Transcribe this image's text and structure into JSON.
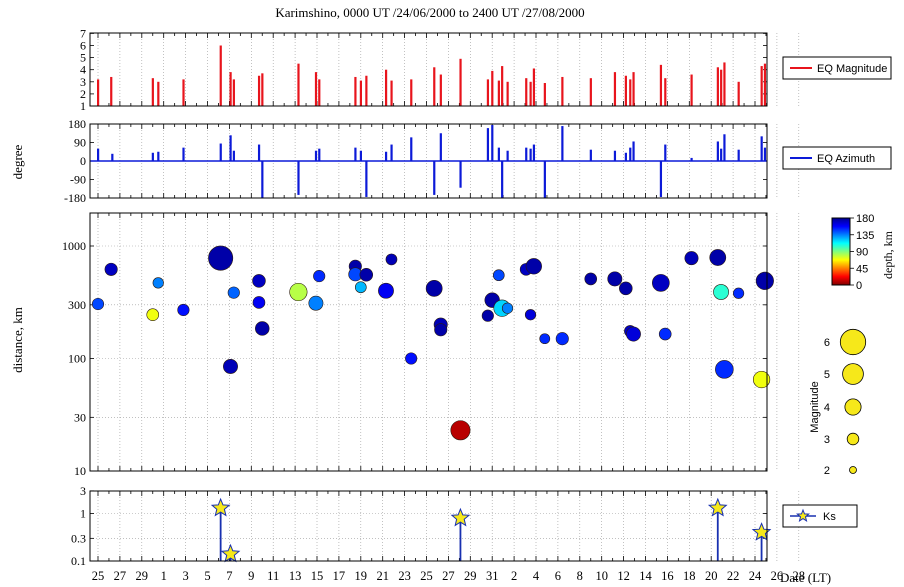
{
  "title": "Karimshino,  0000 UT /24/06/2000  to  2400 UT /27/08/2000",
  "xlabel": "Date (LT)",
  "x_ticks": [
    "25",
    "27",
    "29",
    "1",
    "3",
    "5",
    "7",
    "9",
    "11",
    "13",
    "15",
    "17",
    "19",
    "21",
    "23",
    "25",
    "27",
    "29",
    "31",
    "2",
    "4",
    "6",
    "8",
    "10",
    "12",
    "14",
    "16",
    "18",
    "20",
    "22",
    "24",
    "26",
    "28"
  ],
  "colors": {
    "magnitude_bar": "#e8141c",
    "azimuth_bar": "#0c1ad8",
    "ks_stem": "#1830b0",
    "ks_star": "#f6e81a",
    "grid": "#9a9a9a"
  },
  "chart_data": [
    {
      "type": "bar",
      "panel": "magnitude",
      "ylabel": "",
      "ylim": [
        1,
        7
      ],
      "y_ticks": [
        1,
        2,
        3,
        4,
        5,
        6,
        7
      ],
      "legend": "EQ Magnitude",
      "legend_position": "right",
      "x_unit": "days since first date tick",
      "values": [
        {
          "x": 0.0,
          "y": 3.2
        },
        {
          "x": 1.2,
          "y": 3.4
        },
        {
          "x": 5.0,
          "y": 3.3
        },
        {
          "x": 5.5,
          "y": 3.0
        },
        {
          "x": 7.8,
          "y": 3.2
        },
        {
          "x": 11.2,
          "y": 6.0
        },
        {
          "x": 12.1,
          "y": 3.8
        },
        {
          "x": 12.4,
          "y": 3.2
        },
        {
          "x": 14.7,
          "y": 3.5
        },
        {
          "x": 15.0,
          "y": 3.7
        },
        {
          "x": 18.3,
          "y": 4.5
        },
        {
          "x": 19.9,
          "y": 3.8
        },
        {
          "x": 20.2,
          "y": 3.2
        },
        {
          "x": 23.5,
          "y": 3.4
        },
        {
          "x": 24.0,
          "y": 3.1
        },
        {
          "x": 24.5,
          "y": 3.5
        },
        {
          "x": 26.3,
          "y": 4.0
        },
        {
          "x": 26.8,
          "y": 3.1
        },
        {
          "x": 28.6,
          "y": 3.2
        },
        {
          "x": 30.7,
          "y": 4.2
        },
        {
          "x": 31.3,
          "y": 3.6
        },
        {
          "x": 33.1,
          "y": 4.9
        },
        {
          "x": 35.6,
          "y": 3.2
        },
        {
          "x": 36.0,
          "y": 3.9
        },
        {
          "x": 36.6,
          "y": 3.1
        },
        {
          "x": 36.9,
          "y": 4.3
        },
        {
          "x": 37.4,
          "y": 3.0
        },
        {
          "x": 39.1,
          "y": 3.3
        },
        {
          "x": 39.5,
          "y": 3.0
        },
        {
          "x": 39.8,
          "y": 4.1
        },
        {
          "x": 40.8,
          "y": 2.9
        },
        {
          "x": 42.4,
          "y": 3.4
        },
        {
          "x": 45.0,
          "y": 3.3
        },
        {
          "x": 47.2,
          "y": 3.8
        },
        {
          "x": 48.2,
          "y": 3.5
        },
        {
          "x": 48.6,
          "y": 3.2
        },
        {
          "x": 48.9,
          "y": 3.8
        },
        {
          "x": 51.4,
          "y": 4.4
        },
        {
          "x": 51.8,
          "y": 3.3
        },
        {
          "x": 54.2,
          "y": 3.6
        },
        {
          "x": 56.6,
          "y": 4.2
        },
        {
          "x": 56.9,
          "y": 4.0
        },
        {
          "x": 57.2,
          "y": 4.6
        },
        {
          "x": 58.5,
          "y": 3.0
        },
        {
          "x": 60.6,
          "y": 4.3
        },
        {
          "x": 60.9,
          "y": 4.5
        }
      ]
    },
    {
      "type": "bar",
      "panel": "azimuth",
      "ylabel": "degree",
      "ylim": [
        -180,
        180
      ],
      "y_ticks": [
        180,
        90,
        0,
        -90,
        -180
      ],
      "legend": "EQ   Azimuth",
      "legend_position": "right",
      "values": [
        {
          "x": 0.0,
          "y": 60
        },
        {
          "x": 1.3,
          "y": 35
        },
        {
          "x": 5.0,
          "y": 40
        },
        {
          "x": 5.5,
          "y": 45
        },
        {
          "x": 7.8,
          "y": 65
        },
        {
          "x": 11.2,
          "y": 85
        },
        {
          "x": 12.1,
          "y": 125
        },
        {
          "x": 12.4,
          "y": 50
        },
        {
          "x": 14.7,
          "y": 80
        },
        {
          "x": 15.0,
          "y": -180
        },
        {
          "x": 18.3,
          "y": -165
        },
        {
          "x": 19.9,
          "y": 50
        },
        {
          "x": 20.2,
          "y": 60
        },
        {
          "x": 23.5,
          "y": 65
        },
        {
          "x": 24.0,
          "y": 50
        },
        {
          "x": 24.5,
          "y": -175
        },
        {
          "x": 26.3,
          "y": 45
        },
        {
          "x": 26.8,
          "y": 80
        },
        {
          "x": 28.6,
          "y": 115
        },
        {
          "x": 30.7,
          "y": -165
        },
        {
          "x": 31.3,
          "y": 135
        },
        {
          "x": 33.1,
          "y": -130
        },
        {
          "x": 35.6,
          "y": 160
        },
        {
          "x": 36.0,
          "y": 175
        },
        {
          "x": 36.6,
          "y": 65
        },
        {
          "x": 36.9,
          "y": -180
        },
        {
          "x": 37.4,
          "y": 50
        },
        {
          "x": 39.1,
          "y": 65
        },
        {
          "x": 39.5,
          "y": 60
        },
        {
          "x": 39.8,
          "y": 80
        },
        {
          "x": 40.8,
          "y": -180
        },
        {
          "x": 42.4,
          "y": 170
        },
        {
          "x": 45.0,
          "y": 55
        },
        {
          "x": 47.2,
          "y": 50
        },
        {
          "x": 48.2,
          "y": 40
        },
        {
          "x": 48.6,
          "y": 65
        },
        {
          "x": 48.9,
          "y": 95
        },
        {
          "x": 51.4,
          "y": -175
        },
        {
          "x": 51.8,
          "y": 80
        },
        {
          "x": 54.2,
          "y": 15
        },
        {
          "x": 56.6,
          "y": 95
        },
        {
          "x": 56.9,
          "y": 60
        },
        {
          "x": 57.2,
          "y": 130
        },
        {
          "x": 58.5,
          "y": 55
        },
        {
          "x": 60.6,
          "y": 120
        },
        {
          "x": 60.9,
          "y": 65
        }
      ]
    },
    {
      "type": "scatter",
      "panel": "distance",
      "ylabel": "distance, km",
      "y_scale": "log",
      "ylim": [
        10,
        2000
      ],
      "y_ticks": [
        10,
        30,
        100,
        300,
        1000
      ],
      "colorbar": {
        "label": "depth, km",
        "range": [
          0,
          180
        ],
        "ticks": [
          0,
          45,
          90,
          135,
          180
        ]
      },
      "size_legend": {
        "label": "Magnitude",
        "values": [
          2,
          3,
          4,
          5,
          6
        ]
      },
      "points": [
        {
          "x": 0.0,
          "y": 305,
          "depth": 35,
          "mag": 3.2
        },
        {
          "x": 1.2,
          "y": 620,
          "depth": 10,
          "mag": 3.4
        },
        {
          "x": 5.0,
          "y": 245,
          "depth": 110,
          "mag": 3.3
        },
        {
          "x": 5.5,
          "y": 470,
          "depth": 45,
          "mag": 3.0
        },
        {
          "x": 7.8,
          "y": 270,
          "depth": 25,
          "mag": 3.2
        },
        {
          "x": 11.2,
          "y": 780,
          "depth": 5,
          "mag": 6.0
        },
        {
          "x": 12.1,
          "y": 85,
          "depth": 8,
          "mag": 3.8
        },
        {
          "x": 12.4,
          "y": 385,
          "depth": 40,
          "mag": 3.2
        },
        {
          "x": 14.7,
          "y": 490,
          "depth": 10,
          "mag": 3.5
        },
        {
          "x": 14.7,
          "y": 315,
          "depth": 20,
          "mag": 3.3
        },
        {
          "x": 15.0,
          "y": 185,
          "depth": 5,
          "mag": 3.7
        },
        {
          "x": 18.3,
          "y": 390,
          "depth": 100,
          "mag": 4.5
        },
        {
          "x": 19.9,
          "y": 310,
          "depth": 45,
          "mag": 3.8
        },
        {
          "x": 20.2,
          "y": 540,
          "depth": 30,
          "mag": 3.2
        },
        {
          "x": 23.5,
          "y": 660,
          "depth": 5,
          "mag": 3.4
        },
        {
          "x": 23.5,
          "y": 560,
          "depth": 35,
          "mag": 3.6
        },
        {
          "x": 24.0,
          "y": 430,
          "depth": 55,
          "mag": 3.1
        },
        {
          "x": 24.5,
          "y": 555,
          "depth": 5,
          "mag": 3.5
        },
        {
          "x": 26.3,
          "y": 400,
          "depth": 20,
          "mag": 4.0
        },
        {
          "x": 26.8,
          "y": 760,
          "depth": 8,
          "mag": 3.1
        },
        {
          "x": 28.6,
          "y": 100,
          "depth": 25,
          "mag": 3.2
        },
        {
          "x": 30.7,
          "y": 420,
          "depth": 5,
          "mag": 4.2
        },
        {
          "x": 31.3,
          "y": 200,
          "depth": 8,
          "mag": 3.6
        },
        {
          "x": 31.3,
          "y": 180,
          "depth": 5,
          "mag": 3.4
        },
        {
          "x": 33.1,
          "y": 23,
          "depth": 170,
          "mag": 4.9
        },
        {
          "x": 35.6,
          "y": 240,
          "depth": 5,
          "mag": 3.2
        },
        {
          "x": 36.0,
          "y": 330,
          "depth": 5,
          "mag": 3.9
        },
        {
          "x": 36.6,
          "y": 550,
          "depth": 35,
          "mag": 3.1
        },
        {
          "x": 36.9,
          "y": 280,
          "depth": 60,
          "mag": 4.3
        },
        {
          "x": 37.4,
          "y": 280,
          "depth": 45,
          "mag": 3.0
        },
        {
          "x": 39.1,
          "y": 620,
          "depth": 10,
          "mag": 3.3
        },
        {
          "x": 39.5,
          "y": 245,
          "depth": 15,
          "mag": 3.0
        },
        {
          "x": 39.8,
          "y": 660,
          "depth": 5,
          "mag": 4.1
        },
        {
          "x": 40.8,
          "y": 150,
          "depth": 30,
          "mag": 2.9
        },
        {
          "x": 42.4,
          "y": 150,
          "depth": 30,
          "mag": 3.4
        },
        {
          "x": 45.0,
          "y": 510,
          "depth": 5,
          "mag": 3.3
        },
        {
          "x": 47.2,
          "y": 510,
          "depth": 5,
          "mag": 3.8
        },
        {
          "x": 48.2,
          "y": 420,
          "depth": 5,
          "mag": 3.5
        },
        {
          "x": 48.6,
          "y": 175,
          "depth": 10,
          "mag": 3.2
        },
        {
          "x": 48.9,
          "y": 165,
          "depth": 15,
          "mag": 3.8
        },
        {
          "x": 51.4,
          "y": 470,
          "depth": 10,
          "mag": 4.4
        },
        {
          "x": 51.8,
          "y": 165,
          "depth": 30,
          "mag": 3.3
        },
        {
          "x": 54.2,
          "y": 780,
          "depth": 8,
          "mag": 3.6
        },
        {
          "x": 56.6,
          "y": 790,
          "depth": 5,
          "mag": 4.2
        },
        {
          "x": 56.9,
          "y": 390,
          "depth": 75,
          "mag": 4.0
        },
        {
          "x": 57.2,
          "y": 80,
          "depth": 30,
          "mag": 4.6
        },
        {
          "x": 58.5,
          "y": 380,
          "depth": 30,
          "mag": 3.0
        },
        {
          "x": 60.6,
          "y": 65,
          "depth": 110,
          "mag": 4.3
        },
        {
          "x": 60.9,
          "y": 490,
          "depth": 5,
          "mag": 4.5
        }
      ]
    },
    {
      "type": "scatter",
      "panel": "ks",
      "ylabel": "",
      "y_scale": "log",
      "ylim": [
        0.1,
        3
      ],
      "y_ticks": [
        0.1,
        0.3,
        1,
        3
      ],
      "legend": "Ks",
      "legend_position": "right",
      "points": [
        {
          "x": 11.2,
          "y": 1.3
        },
        {
          "x": 12.1,
          "y": 0.14
        },
        {
          "x": 33.1,
          "y": 0.8
        },
        {
          "x": 56.6,
          "y": 1.3
        },
        {
          "x": 60.6,
          "y": 0.4
        }
      ]
    }
  ]
}
